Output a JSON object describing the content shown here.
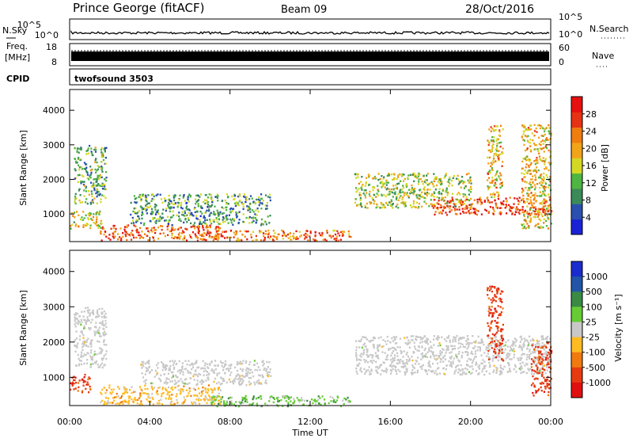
{
  "header": {
    "station": "Prince George (fitACF)",
    "beam": "Beam 09",
    "date": "28/Oct/2016"
  },
  "strip_labels": {
    "nsky": "N.Sky",
    "nsky_ticks": [
      "10^5",
      "10^0"
    ],
    "freq": "Freq.",
    "freq_unit": "[MHz]",
    "freq_ticks": [
      "18",
      "8"
    ],
    "cpid": "CPID",
    "cpid_value": "twofsound 3503",
    "nsearch": "N.Search",
    "nsearch_ticks": [
      "10^5",
      "10^0"
    ],
    "nave": "Nave",
    "nave_ticks": [
      "60",
      "0"
    ]
  },
  "chart_data": [
    {
      "type": "heatmap",
      "panel": "power",
      "ylabel": "Slant Range [km]",
      "ylim": [
        200,
        4600
      ],
      "yticks": [
        "1000",
        "2000",
        "3000",
        "4000"
      ],
      "xticks": [
        "00:00",
        "04:00",
        "08:00",
        "12:00",
        "16:00",
        "20:00",
        "00:00"
      ],
      "colorbar_label": "Power [dB]",
      "colorbar_ticks": [
        "4",
        "8",
        "12",
        "16",
        "20",
        "24",
        "28"
      ],
      "colorscale": [
        "#1a22d6",
        "#2a4fae",
        "#3b8a5a",
        "#4fb542",
        "#d4d824",
        "#f2a418",
        "#f07d10",
        "#e63314",
        "#e61010"
      ],
      "regions": [
        {
          "t": [
            0.0,
            1.6
          ],
          "r": [
            600,
            1100
          ],
          "level": 0.55
        },
        {
          "t": [
            0.2,
            1.8
          ],
          "r": [
            1300,
            3000
          ],
          "level": 0.35
        },
        {
          "t": [
            1.5,
            7.5
          ],
          "r": [
            250,
            700
          ],
          "level": 0.8
        },
        {
          "t": [
            3.0,
            10.0
          ],
          "r": [
            700,
            1600
          ],
          "level": 0.3
        },
        {
          "t": [
            7.0,
            14.0
          ],
          "r": [
            250,
            550
          ],
          "level": 0.75
        },
        {
          "t": [
            14.2,
            20.0
          ],
          "r": [
            1200,
            2200
          ],
          "level": 0.45
        },
        {
          "t": [
            18.0,
            24.0
          ],
          "r": [
            1000,
            1500
          ],
          "level": 0.85
        },
        {
          "t": [
            20.8,
            21.6
          ],
          "r": [
            1500,
            3600
          ],
          "level": 0.6
        },
        {
          "t": [
            22.5,
            24.0
          ],
          "r": [
            600,
            3600
          ],
          "level": 0.6
        }
      ]
    },
    {
      "type": "heatmap",
      "panel": "velocity",
      "ylabel": "Slant Range [km]",
      "xlabel": "Time UT",
      "ylim": [
        200,
        4600
      ],
      "yticks": [
        "1000",
        "2000",
        "3000",
        "4000"
      ],
      "xticks": [
        "00:00",
        "04:00",
        "08:00",
        "12:00",
        "16:00",
        "20:00",
        "00:00"
      ],
      "colorbar_label": "Velocity [m s⁻¹]",
      "colorbar_ticks": [
        "1000",
        "500",
        "100",
        "25",
        "-25",
        "-100",
        "-500",
        "-1000"
      ],
      "colorscale": [
        "#1a2ccc",
        "#2255a8",
        "#3a8a44",
        "#66cc33",
        "#c8c8c8",
        "#ffbb22",
        "#f07a10",
        "#e63a10",
        "#e01010"
      ],
      "regions": [
        {
          "t": [
            0.0,
            1.0
          ],
          "r": [
            600,
            1100
          ],
          "vel": -500
        },
        {
          "t": [
            0.2,
            1.8
          ],
          "r": [
            1300,
            3000
          ],
          "vel": 0
        },
        {
          "t": [
            1.5,
            7.5
          ],
          "r": [
            250,
            800
          ],
          "vel": -100
        },
        {
          "t": [
            3.5,
            10.0
          ],
          "r": [
            800,
            1500
          ],
          "vel": 0
        },
        {
          "t": [
            7.0,
            14.0
          ],
          "r": [
            200,
            500
          ],
          "vel": 100
        },
        {
          "t": [
            14.2,
            24.0
          ],
          "r": [
            1100,
            2200
          ],
          "vel": 0
        },
        {
          "t": [
            20.8,
            21.6
          ],
          "r": [
            1500,
            3600
          ],
          "vel": -500
        },
        {
          "t": [
            23.0,
            24.0
          ],
          "r": [
            500,
            2000
          ],
          "vel": -500
        }
      ]
    }
  ]
}
